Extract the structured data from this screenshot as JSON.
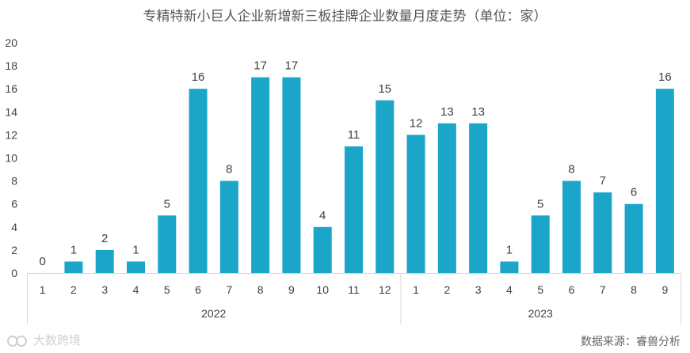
{
  "title": "专精特新小巨人企业新增新三板挂牌企业数量月度走势（单位：家）",
  "source": "数据来源：睿兽分析",
  "watermark": "大数跨境",
  "colors": {
    "bar": "#1aa5c9",
    "axis": "#d9d9d9",
    "text": "#404040"
  },
  "chart_data": {
    "type": "bar",
    "title": "专精特新小巨人企业新增新三板挂牌企业数量月度走势（单位：家）",
    "xlabel": "",
    "ylabel": "",
    "ylim": [
      0,
      20
    ],
    "yticks": [
      0,
      2,
      4,
      6,
      8,
      10,
      12,
      14,
      16,
      18,
      20
    ],
    "grid": false,
    "categories": [
      "1",
      "2",
      "3",
      "4",
      "5",
      "6",
      "7",
      "8",
      "9",
      "10",
      "11",
      "12",
      "1",
      "2",
      "3",
      "4",
      "5",
      "6",
      "7",
      "8",
      "9"
    ],
    "groups": [
      {
        "label": "2022",
        "count": 12
      },
      {
        "label": "2023",
        "count": 9
      }
    ],
    "values": [
      0,
      1,
      2,
      1,
      5,
      16,
      8,
      17,
      17,
      4,
      11,
      15,
      12,
      13,
      13,
      1,
      5,
      8,
      7,
      6,
      16
    ]
  }
}
